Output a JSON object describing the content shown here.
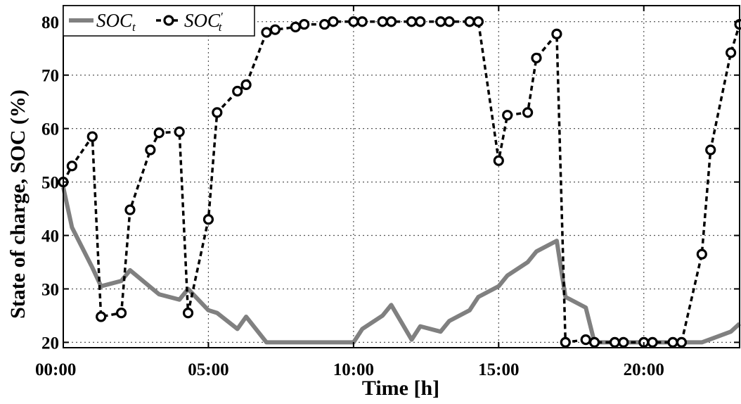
{
  "chart_data": {
    "type": "line",
    "xlabel": "Time [h]",
    "ylabel": "State of charge, SOC (%)",
    "xlim": [
      0,
      23.3
    ],
    "ylim": [
      19,
      83
    ],
    "x_ticks": [
      0,
      5,
      10,
      15,
      20
    ],
    "x_tick_labels": [
      "00:00",
      "05:00",
      "10:00",
      "15:00",
      "20:00"
    ],
    "y_ticks": [
      20,
      30,
      40,
      50,
      60,
      70,
      80
    ],
    "y_tick_labels": [
      "20",
      "30",
      "40",
      "50",
      "60",
      "70",
      "80"
    ],
    "grid": true,
    "legend_position": "top-left",
    "series": [
      {
        "name": "SOC_t",
        "legend_main": "SOC",
        "legend_sub": "t",
        "legend_prime": "",
        "color": "#808080",
        "style": "solid",
        "marker": "none",
        "x": [
          0,
          0.3,
          1,
          1.3,
          2,
          2.3,
          3.3,
          4,
          4.3,
          5,
          5.3,
          6,
          6.3,
          7,
          8,
          9,
          10,
          10.3,
          11,
          11.3,
          12,
          12.3,
          13,
          13.3,
          14,
          14.3,
          15,
          15.3,
          16,
          16.3,
          17,
          17.3,
          18,
          18.3,
          19,
          20,
          21,
          22,
          23,
          23.3
        ],
        "y": [
          49,
          41.5,
          34,
          30.5,
          31.5,
          33.5,
          29,
          28,
          30,
          26,
          25.5,
          22.5,
          24.8,
          20,
          20,
          20,
          20,
          22.5,
          25,
          27,
          20.5,
          23,
          22,
          24,
          26,
          28.5,
          30.5,
          32.5,
          35,
          37,
          39,
          28.5,
          26.5,
          20,
          20,
          20,
          20,
          20,
          22,
          23.5
        ]
      },
      {
        "name": "SOC'_t",
        "legend_main": "SOC",
        "legend_sub": "t",
        "legend_prime": "′",
        "color": "#000000",
        "style": "dashed",
        "marker": "circle",
        "x": [
          0,
          0.3,
          1,
          1.3,
          2,
          2.3,
          3,
          3.3,
          4,
          4.3,
          5,
          5.3,
          6,
          6.3,
          7,
          7.3,
          8,
          8.3,
          9,
          9.3,
          10,
          10.3,
          11,
          11.3,
          12,
          12.3,
          13,
          13.3,
          14,
          14.3,
          15,
          15.3,
          16,
          16.3,
          17,
          17.3,
          18,
          18.3,
          19,
          19.3,
          20,
          20.3,
          21,
          21.3,
          22,
          22.3,
          23,
          23.3
        ],
        "y": [
          50,
          53,
          58.5,
          24.8,
          25.5,
          44.8,
          56,
          59.2,
          59.4,
          25.5,
          43,
          63,
          67,
          68.2,
          78,
          78.5,
          79,
          79.5,
          79.5,
          80,
          80,
          80,
          80,
          80,
          80,
          80,
          80,
          80,
          80,
          80,
          54,
          62.5,
          63,
          73.2,
          77.7,
          20,
          20.5,
          20,
          20,
          20,
          20,
          20,
          20,
          20,
          36.5,
          56,
          74.2,
          79.5
        ]
      }
    ]
  }
}
